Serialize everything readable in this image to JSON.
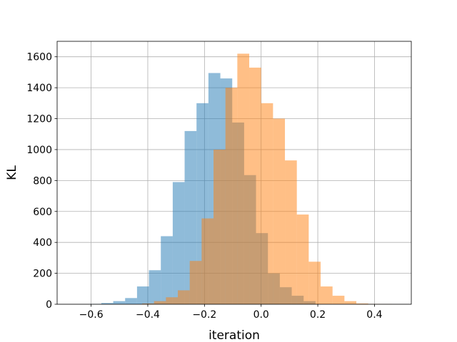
{
  "chart_data": {
    "type": "bar",
    "title": "",
    "xlabel": "iteration",
    "ylabel": "KL",
    "xlim": [
      -0.72,
      0.53
    ],
    "ylim": [
      0,
      1700
    ],
    "grid": true,
    "xticks": [
      -0.6,
      -0.4,
      -0.2,
      0.0,
      0.2,
      0.4
    ],
    "xtick_labels": [
      "−0.6",
      "−0.4",
      "−0.2",
      "0.0",
      "0.2",
      "0.4"
    ],
    "yticks": [
      0,
      200,
      400,
      600,
      800,
      1000,
      1200,
      1400,
      1600
    ],
    "ytick_labels": [
      "0",
      "200",
      "400",
      "600",
      "800",
      "1000",
      "1200",
      "1400",
      "1600"
    ],
    "series": [
      {
        "color": "#1f77b4",
        "opacity": 0.5,
        "bin_edges": [
          -0.606,
          -0.564,
          -0.522,
          -0.48,
          -0.438,
          -0.396,
          -0.354,
          -0.312,
          -0.27,
          -0.228,
          -0.186,
          -0.144,
          -0.102,
          -0.06,
          -0.018,
          0.024,
          0.066,
          0.108,
          0.15,
          0.192
        ],
        "counts": [
          2,
          8,
          20,
          40,
          115,
          220,
          440,
          790,
          1120,
          1300,
          1495,
          1460,
          1175,
          835,
          460,
          200,
          110,
          55,
          20
        ]
      },
      {
        "color": "#ff7f0e",
        "opacity": 0.5,
        "bin_edges": [
          -0.42,
          -0.378,
          -0.336,
          -0.294,
          -0.252,
          -0.21,
          -0.168,
          -0.126,
          -0.084,
          -0.042,
          0.0,
          0.042,
          0.084,
          0.126,
          0.168,
          0.21,
          0.252,
          0.294,
          0.336,
          0.378,
          0.42,
          0.462
        ],
        "counts": [
          5,
          20,
          45,
          90,
          280,
          555,
          1000,
          1400,
          1620,
          1530,
          1300,
          1200,
          930,
          580,
          275,
          115,
          55,
          20,
          5,
          2,
          1
        ]
      }
    ]
  }
}
